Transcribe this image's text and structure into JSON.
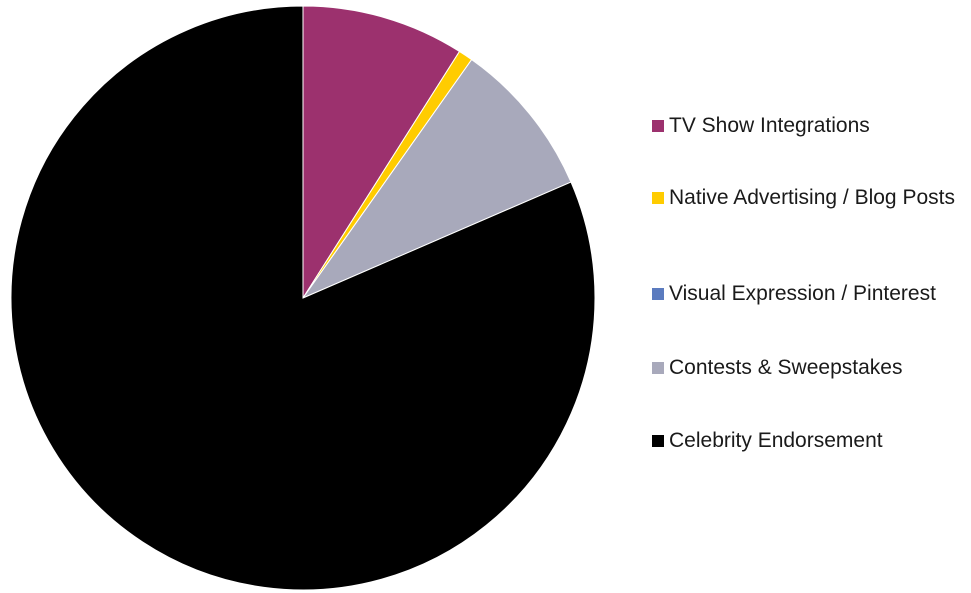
{
  "chart_data": {
    "type": "pie",
    "categories": [
      "TV Show Integrations",
      "Native Advertising / Blog Posts",
      "Visual Expression / Pinterest",
      "Contests & Sweepstakes",
      "Celebrity Endorsement"
    ],
    "values": [
      9,
      0.8,
      0,
      8.7,
      81.5
    ],
    "colors": [
      "#9c316e",
      "#ffcc00",
      "#5b7bbf",
      "#a8a9bb",
      "#000000"
    ],
    "legend": "right"
  }
}
